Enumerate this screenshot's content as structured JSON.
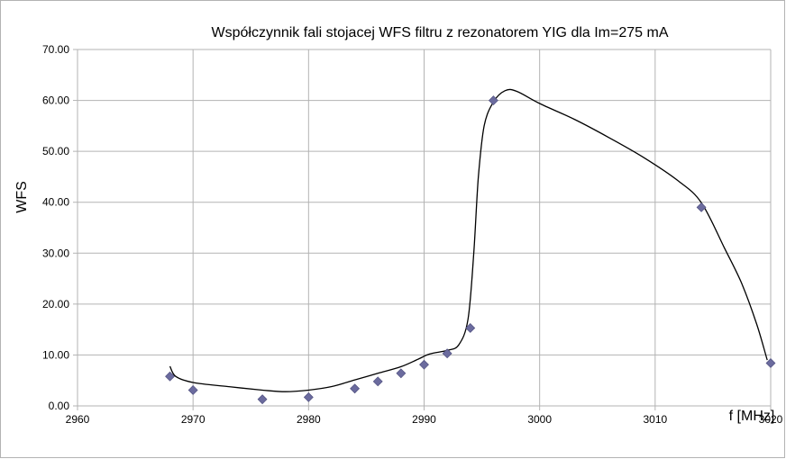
{
  "chart_data": {
    "type": "scatter",
    "title": "Współczynnik fali stojacej WFS filtru z rezonatorem YIG dla Im=275 mA",
    "xlabel": "f [MHz]",
    "ylabel": "WFS",
    "xlim": [
      2960,
      3020
    ],
    "ylim": [
      0,
      70
    ],
    "x_ticks": [
      2960,
      2970,
      2980,
      2990,
      3000,
      3010,
      3020
    ],
    "y_ticks": [
      0,
      10,
      20,
      30,
      40,
      50,
      60,
      70
    ],
    "x_tick_labels": [
      "2960",
      "2970",
      "2980",
      "2990",
      "3000",
      "3010",
      "3020"
    ],
    "y_tick_labels": [
      "0.00",
      "10.00",
      "20.00",
      "30.00",
      "40.00",
      "50.00",
      "60.00",
      "70.00"
    ],
    "grid": true,
    "legend": "none",
    "series": [
      {
        "kind": "points",
        "marker": "diamond",
        "color": "#6b6b9e",
        "points": [
          [
            2968,
            5.8
          ],
          [
            2970,
            3.1
          ],
          [
            2976,
            1.3
          ],
          [
            2980,
            1.7
          ],
          [
            2984,
            3.4
          ],
          [
            2986,
            4.8
          ],
          [
            2988,
            6.4
          ],
          [
            2990,
            8.1
          ],
          [
            2992,
            10.3
          ],
          [
            2994,
            15.3
          ],
          [
            2996,
            60.0
          ],
          [
            3014,
            39.0
          ],
          [
            3020,
            8.4
          ]
        ]
      },
      {
        "kind": "smoothed-line",
        "color": "#000000",
        "points": [
          [
            2968,
            7.8
          ],
          [
            2968.5,
            5.8
          ],
          [
            2970,
            4.6
          ],
          [
            2973,
            3.8
          ],
          [
            2976,
            3.1
          ],
          [
            2978,
            2.8
          ],
          [
            2980,
            3.1
          ],
          [
            2982,
            3.8
          ],
          [
            2984,
            5.1
          ],
          [
            2986,
            6.4
          ],
          [
            2988,
            7.7
          ],
          [
            2989.5,
            9.2
          ],
          [
            2990.5,
            10.2
          ],
          [
            2992,
            10.9
          ],
          [
            2993,
            12.0
          ],
          [
            2993.8,
            17.0
          ],
          [
            2994.3,
            30.0
          ],
          [
            2994.7,
            45.0
          ],
          [
            2995.2,
            55.0
          ],
          [
            2996,
            59.7
          ],
          [
            2997,
            61.9
          ],
          [
            2998,
            61.8
          ],
          [
            3000,
            59.4
          ],
          [
            3003,
            56.3
          ],
          [
            3006,
            52.7
          ],
          [
            3009,
            48.8
          ],
          [
            3012,
            44.2
          ],
          [
            3014,
            39.9
          ],
          [
            3016,
            31.0
          ],
          [
            3017.5,
            24.0
          ],
          [
            3018.8,
            16.0
          ],
          [
            3019.7,
            9.0
          ]
        ]
      }
    ]
  }
}
